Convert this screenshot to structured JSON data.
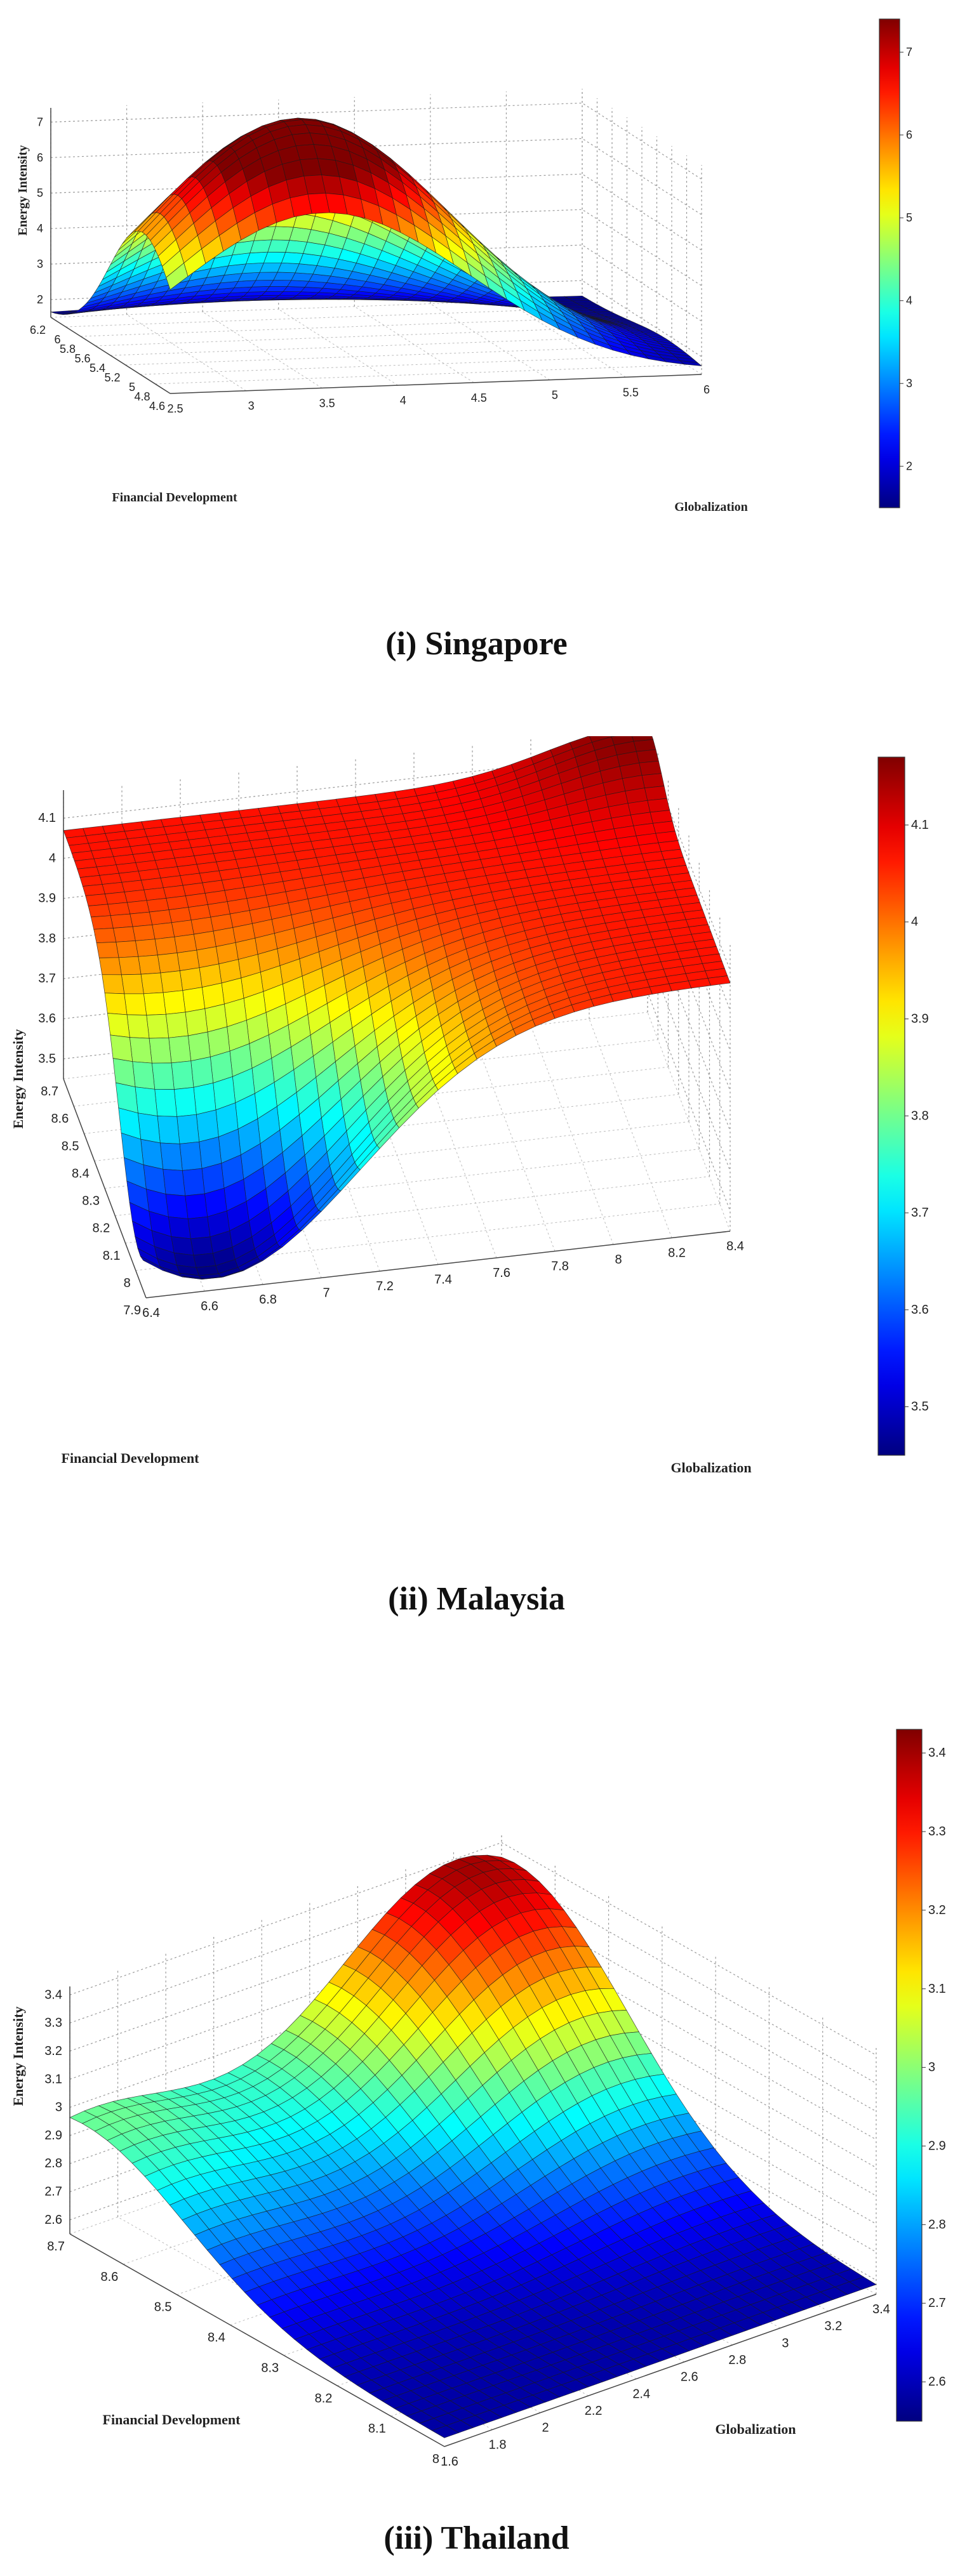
{
  "chart_data": [
    {
      "type": "surface3d",
      "title": "",
      "caption": "(i) Singapore",
      "xlabel": "Financial Development",
      "ylabel": "Globalization",
      "zlabel": "Energy Intensity",
      "x_ticks": [
        "4.6",
        "4.8",
        "5",
        "5.2",
        "5.4",
        "5.6",
        "5.8",
        "6",
        "6.2"
      ],
      "y_ticks": [
        "2.5",
        "3",
        "3.5",
        "4",
        "4.5",
        "5",
        "5.5",
        "6"
      ],
      "z_ticks": [
        "2",
        "3",
        "4",
        "5",
        "6",
        "7"
      ],
      "colorbar_ticks": [
        "2",
        "3",
        "4",
        "5",
        "6",
        "7"
      ],
      "xlim": [
        4.55,
        6.25
      ],
      "ylim": [
        2.4,
        6.1
      ],
      "zlim": [
        1.5,
        7.4
      ],
      "colormap": "jet",
      "peaks": [
        {
          "x": 4.9,
          "y": 3.4,
          "height": 5.7,
          "spread": 0.55
        },
        {
          "x": 5.2,
          "y": 3.9,
          "height": 1.7,
          "spread": 0.55
        }
      ]
    },
    {
      "type": "surface3d",
      "title": "",
      "caption": "(ii) Malaysia",
      "xlabel": "Financial Development",
      "ylabel": "Globalization",
      "zlabel": "Energy Intensity",
      "x_ticks": [
        "7.9",
        "8",
        "8.1",
        "8.2",
        "8.3",
        "8.4",
        "8.5",
        "8.6",
        "8.7"
      ],
      "y_ticks": [
        "6.4",
        "6.6",
        "6.8",
        "7",
        "7.2",
        "7.4",
        "7.6",
        "7.8",
        "8",
        "8.2",
        "8.4"
      ],
      "z_ticks": [
        "3.5",
        "3.6",
        "3.7",
        "3.8",
        "3.9",
        "4",
        "4.1"
      ],
      "colorbar_ticks": [
        "3.5",
        "3.6",
        "3.7",
        "3.8",
        "3.9",
        "4",
        "4.1"
      ],
      "xlim": [
        7.88,
        8.78
      ],
      "ylim": [
        6.35,
        8.45
      ],
      "zlim": [
        3.45,
        4.17
      ],
      "colormap": "jet",
      "base_level": 4.07,
      "peaks": [
        {
          "x": 7.95,
          "y": 6.6,
          "height": -0.62,
          "spread": 0.5
        },
        {
          "x": 8.75,
          "y": 8.4,
          "height": 0.1,
          "spread": 0.3
        }
      ]
    },
    {
      "type": "surface3d",
      "title": "",
      "caption": "(iii) Thailand",
      "xlabel": "Financial Development",
      "ylabel": "Globalization",
      "zlabel": "Energy Intensity",
      "x_ticks": [
        "8",
        "8.1",
        "8.2",
        "8.3",
        "8.4",
        "8.5",
        "8.6",
        "8.7"
      ],
      "y_ticks": [
        "1.6",
        "1.8",
        "2",
        "2.2",
        "2.4",
        "2.6",
        "2.8",
        "3",
        "3.2",
        "3.4"
      ],
      "z_ticks": [
        "2.6",
        "2.7",
        "2.8",
        "2.9",
        "3",
        "3.1",
        "3.2",
        "3.3",
        "3.4"
      ],
      "colorbar_ticks": [
        "2.6",
        "2.7",
        "2.8",
        "2.9",
        "3",
        "3.1",
        "3.2",
        "3.3",
        "3.4"
      ],
      "xlim": [
        7.98,
        8.78
      ],
      "ylim": [
        1.55,
        3.5
      ],
      "zlim": [
        2.55,
        3.43
      ],
      "colormap": "jet",
      "base_level": 2.58,
      "peaks": [
        {
          "x": 8.75,
          "y": 3.3,
          "height": 0.82,
          "spread": 0.6
        },
        {
          "x": 8.75,
          "y": 1.6,
          "height": 0.38,
          "spread": 0.55
        }
      ]
    }
  ]
}
